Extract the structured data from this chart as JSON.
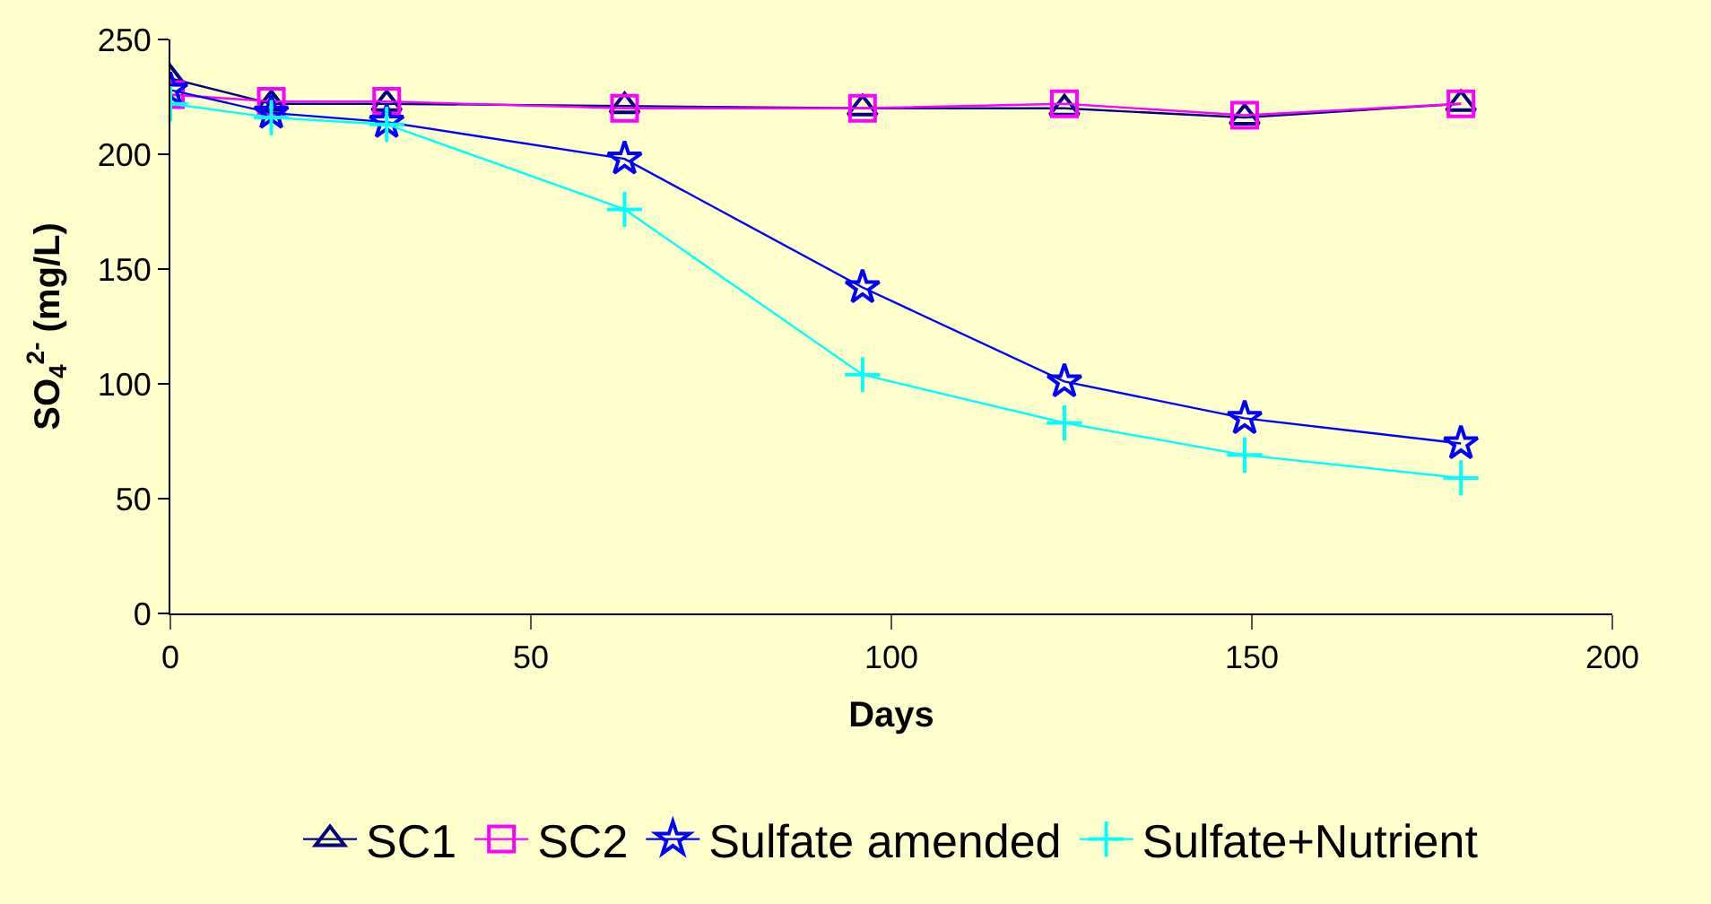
{
  "chart_data": {
    "type": "line",
    "xlabel": "Days",
    "ylabel": "SO$_{4}$$^{2-}$ (mg/L)",
    "x": [
      0,
      14,
      30,
      63,
      96,
      124,
      149,
      179
    ],
    "xlim": [
      0,
      200
    ],
    "xticks": [
      0,
      50,
      100,
      150,
      200
    ],
    "ylim": [
      0,
      250
    ],
    "yticks": [
      0,
      50,
      100,
      150,
      200,
      250
    ],
    "grid": false,
    "legend": "bottom",
    "series": [
      {
        "name": "SC1",
        "color": "#000080",
        "marker": "triangle",
        "values": [
          233,
          222,
          222,
          221,
          220,
          220,
          216,
          222
        ]
      },
      {
        "name": "SC2",
        "color": "#ff00ff",
        "marker": "square",
        "values": [
          226,
          223,
          223,
          220,
          220,
          222,
          217,
          222
        ]
      },
      {
        "name": "Sulfate amended",
        "color": "#0000ff",
        "marker": "star",
        "values": [
          228,
          218,
          214,
          198,
          142,
          101,
          85,
          74
        ]
      },
      {
        "name": "Sulfate+Nutrient",
        "color": "#00ffff",
        "marker": "cross",
        "values": [
          222,
          216,
          213,
          176,
          104,
          83,
          69,
          59
        ]
      }
    ]
  }
}
